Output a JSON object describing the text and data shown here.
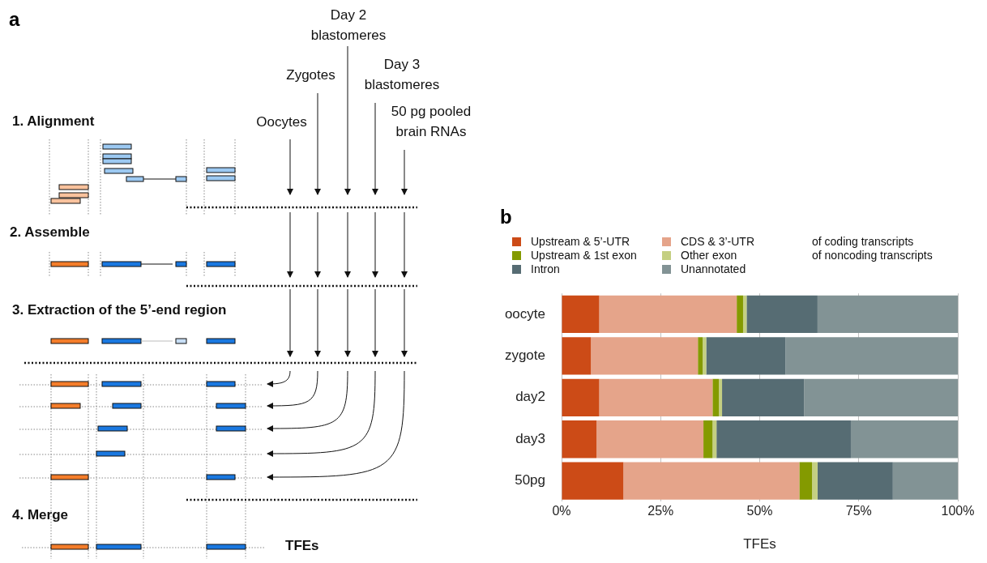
{
  "chart_data": [
    {
      "type": "other",
      "title": "a",
      "annotations": [
        "1. Alignment",
        "2. Assemble",
        "3. Extraction of the 5’-end region",
        "4. Merge",
        "Oocytes",
        "Zygotes",
        "Day 2 blastomeres",
        "Day 3 blastomeres",
        "50 pg pooled brain RNAs",
        "TFEs"
      ]
    },
    {
      "type": "bar",
      "title": "b",
      "orientation": "horizontal",
      "stacked": true,
      "categories": [
        "oocyte",
        "zygote",
        "day2",
        "day3",
        "50pg"
      ],
      "xlabel": "TFEs",
      "xlim": [
        0,
        100
      ],
      "xticks": [
        {
          "value": 0,
          "label": "0%"
        },
        {
          "value": 25,
          "label": "25%"
        },
        {
          "value": 50,
          "label": "50%"
        },
        {
          "value": 75,
          "label": "75%"
        },
        {
          "value": 100,
          "label": "100%"
        }
      ],
      "grid": "x",
      "legend": "top",
      "annotations": [
        "of coding transcripts",
        "of noncoding transcripts"
      ],
      "series": [
        {
          "name": "Upstream & 5’-UTR",
          "color": "#cc4b17",
          "values": [
            9.5,
            7.4,
            9.5,
            8.8,
            15.6
          ]
        },
        {
          "name": "CDS & 3’-UTR",
          "color": "#e5a48a",
          "values": [
            34.7,
            27.0,
            28.6,
            27.0,
            44.4
          ]
        },
        {
          "name": "Upstream & 1st exon",
          "color": "#849a00",
          "values": [
            1.6,
            1.2,
            1.6,
            2.3,
            3.2
          ]
        },
        {
          "name": "Other exon",
          "color": "#c4cf82",
          "values": [
            0.9,
            0.9,
            0.8,
            1.0,
            1.4
          ]
        },
        {
          "name": "Intron",
          "color": "#566c73",
          "values": [
            17.9,
            20.0,
            20.7,
            33.9,
            19.0
          ]
        },
        {
          "name": "Unannotated",
          "color": "#829395",
          "values": [
            35.4,
            43.5,
            38.8,
            27.0,
            16.4
          ]
        }
      ]
    }
  ]
}
